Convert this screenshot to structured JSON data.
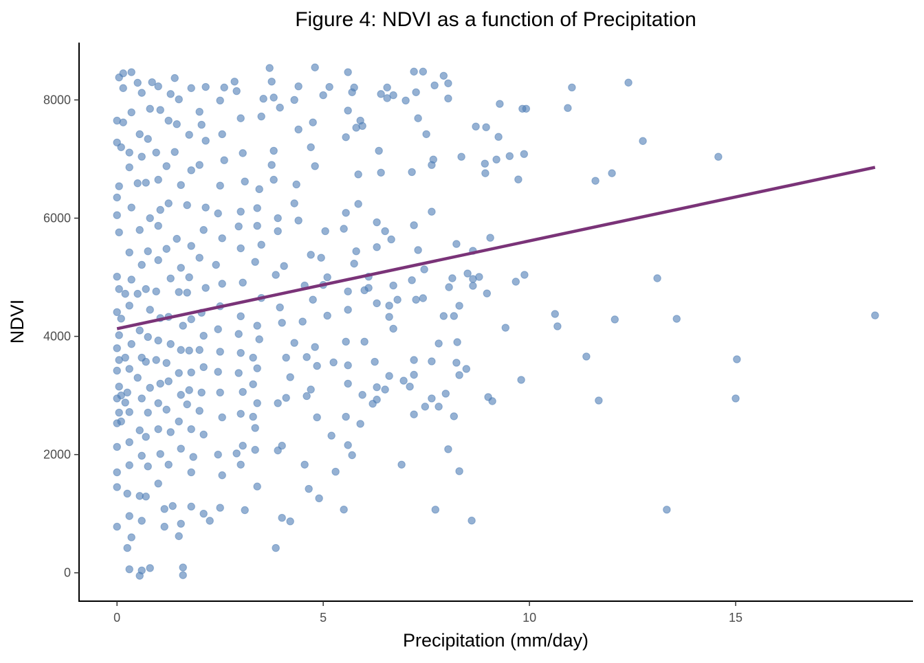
{
  "chart_data": {
    "type": "scatter",
    "title": "Figure 4: NDVI as a function of Precipitation",
    "xlabel": "Precipitation (mm/day)",
    "ylabel": "NDVI",
    "xlim": [
      -0.92,
      19.3
    ],
    "ylim": [
      -480,
      8970
    ],
    "xticks": [
      0,
      5,
      10,
      15
    ],
    "yticks": [
      0,
      2000,
      4000,
      6000,
      8000
    ],
    "grid": false,
    "legend": "none",
    "colors": {
      "points": "#4e7db5",
      "trend": "#7a3378",
      "axis": "#000000",
      "tick_label": "#4d4d4d"
    },
    "trend_line": {
      "x": [
        0,
        18.38
      ],
      "y": [
        4130,
        6860
      ]
    },
    "points": [
      [
        18.38,
        4355
      ],
      [
        15.03,
        3612
      ],
      [
        15.0,
        2950
      ],
      [
        14.58,
        7038
      ],
      [
        13.33,
        1068
      ],
      [
        13.57,
        4297
      ],
      [
        13.1,
        4983
      ],
      [
        12.75,
        7305
      ],
      [
        12.4,
        8293
      ],
      [
        12.07,
        4286
      ],
      [
        12.0,
        6760
      ],
      [
        11.6,
        6632
      ],
      [
        11.68,
        2915
      ],
      [
        11.38,
        3659
      ],
      [
        11.03,
        8211
      ],
      [
        10.93,
        7863
      ],
      [
        10.68,
        4170
      ],
      [
        10.62,
        4379
      ],
      [
        9.8,
        3264
      ],
      [
        9.88,
        5041
      ],
      [
        9.67,
        4925
      ],
      [
        9.87,
        7085
      ],
      [
        9.73,
        6655
      ],
      [
        9.92,
        7851
      ],
      [
        9.83,
        7851
      ],
      [
        9.52,
        7050
      ],
      [
        9.28,
        7933
      ],
      [
        9.25,
        7375
      ],
      [
        9.2,
        6992
      ],
      [
        9.42,
        4146
      ],
      [
        9.1,
        2904
      ],
      [
        9.0,
        2973
      ],
      [
        9.05,
        5668
      ],
      [
        8.97,
        4727
      ],
      [
        8.92,
        6922
      ],
      [
        8.93,
        6760
      ],
      [
        8.95,
        7538
      ],
      [
        8.7,
        7550
      ],
      [
        8.6,
        883
      ],
      [
        8.78,
        5006
      ],
      [
        8.63,
        4855
      ],
      [
        8.63,
        4971
      ],
      [
        8.5,
        5064
      ],
      [
        8.63,
        5447
      ],
      [
        8.47,
        3449
      ],
      [
        8.3,
        3345
      ],
      [
        8.3,
        1719
      ],
      [
        8.3,
        4518
      ],
      [
        8.25,
        3902
      ],
      [
        8.23,
        3554
      ],
      [
        8.23,
        5563
      ],
      [
        8.35,
        7038
      ],
      [
        8.17,
        2648
      ],
      [
        8.17,
        4344
      ],
      [
        7.92,
        4344
      ],
      [
        8.05,
        4832
      ],
      [
        8.13,
        4983
      ],
      [
        8.03,
        8025
      ],
      [
        7.92,
        8409
      ],
      [
        8.03,
        8281
      ],
      [
        8.03,
        2091
      ],
      [
        7.97,
        3031
      ],
      [
        7.8,
        3879
      ],
      [
        7.8,
        2811
      ],
      [
        7.63,
        2950
      ],
      [
        7.7,
        8246
      ],
      [
        7.72,
        1068
      ],
      [
        7.67,
        6992
      ],
      [
        7.63,
        6899
      ],
      [
        7.63,
        3577
      ],
      [
        7.63,
        6109
      ],
      [
        7.5,
        7421
      ],
      [
        7.42,
        8479
      ],
      [
        7.45,
        5133
      ],
      [
        7.42,
        4646
      ],
      [
        7.47,
        2811
      ],
      [
        7.2,
        8479
      ],
      [
        7.25,
        8130
      ],
      [
        7.3,
        7690
      ],
      [
        7.15,
        6780
      ],
      [
        7.2,
        5880
      ],
      [
        7.3,
        5460
      ],
      [
        7.15,
        4950
      ],
      [
        7.25,
        4620
      ],
      [
        7.2,
        3600
      ],
      [
        7.2,
        3350
      ],
      [
        7.1,
        3150
      ],
      [
        7.2,
        2680
      ],
      [
        6.9,
        1830
      ],
      [
        6.95,
        3250
      ],
      [
        7.0,
        7990
      ],
      [
        6.8,
        4620
      ],
      [
        6.7,
        4860
      ],
      [
        6.6,
        4520
      ],
      [
        6.6,
        3330
      ],
      [
        6.5,
        3100
      ],
      [
        6.6,
        4330
      ],
      [
        6.7,
        4130
      ],
      [
        6.65,
        5640
      ],
      [
        6.5,
        5780
      ],
      [
        6.55,
        8030
      ],
      [
        6.4,
        8100
      ],
      [
        6.55,
        8210
      ],
      [
        6.7,
        8080
      ],
      [
        6.4,
        6770
      ],
      [
        6.35,
        7140
      ],
      [
        6.3,
        5510
      ],
      [
        6.3,
        5930
      ],
      [
        6.25,
        3570
      ],
      [
        6.3,
        2930
      ],
      [
        6.2,
        2860
      ],
      [
        6.3,
        3140
      ],
      [
        6.3,
        4560
      ],
      [
        6.1,
        4820
      ],
      [
        6.1,
        5010
      ],
      [
        6.0,
        4780
      ],
      [
        6.0,
        3910
      ],
      [
        5.95,
        3010
      ],
      [
        5.9,
        2520
      ],
      [
        5.85,
        6240
      ],
      [
        5.85,
        6740
      ],
      [
        5.8,
        5440
      ],
      [
        5.75,
        5230
      ],
      [
        5.9,
        7650
      ],
      [
        5.95,
        7560
      ],
      [
        5.8,
        7530
      ],
      [
        5.7,
        8130
      ],
      [
        5.75,
        8210
      ],
      [
        5.6,
        8470
      ],
      [
        5.6,
        7820
      ],
      [
        5.55,
        7370
      ],
      [
        5.55,
        6090
      ],
      [
        5.5,
        5820
      ],
      [
        5.6,
        4760
      ],
      [
        5.6,
        4450
      ],
      [
        5.55,
        3910
      ],
      [
        5.6,
        3510
      ],
      [
        5.6,
        3200
      ],
      [
        5.55,
        2640
      ],
      [
        5.7,
        1990
      ],
      [
        5.6,
        2160
      ],
      [
        5.5,
        1070
      ],
      [
        5.3,
        1710
      ],
      [
        5.2,
        2320
      ],
      [
        5.25,
        3560
      ],
      [
        5.1,
        4350
      ],
      [
        5.0,
        4870
      ],
      [
        5.1,
        5000
      ],
      [
        4.95,
        5330
      ],
      [
        5.05,
        5780
      ],
      [
        5.0,
        8080
      ],
      [
        5.15,
        8220
      ],
      [
        4.8,
        8550
      ],
      [
        4.75,
        7620
      ],
      [
        4.7,
        7200
      ],
      [
        4.8,
        6880
      ],
      [
        4.7,
        5380
      ],
      [
        4.75,
        4620
      ],
      [
        4.8,
        3820
      ],
      [
        4.85,
        3500
      ],
      [
        4.7,
        3100
      ],
      [
        4.6,
        2990
      ],
      [
        4.85,
        2630
      ],
      [
        4.55,
        1830
      ],
      [
        4.65,
        1420
      ],
      [
        4.9,
        1260
      ],
      [
        4.6,
        3650
      ],
      [
        4.5,
        4250
      ],
      [
        4.55,
        4860
      ],
      [
        4.4,
        5960
      ],
      [
        4.3,
        6250
      ],
      [
        4.35,
        6570
      ],
      [
        4.4,
        7500
      ],
      [
        4.4,
        8230
      ],
      [
        4.3,
        8000
      ],
      [
        4.2,
        870
      ],
      [
        4.0,
        930
      ],
      [
        3.85,
        420
      ],
      [
        3.9,
        2070
      ],
      [
        4.0,
        2150
      ],
      [
        3.9,
        2870
      ],
      [
        4.1,
        2960
      ],
      [
        4.2,
        3310
      ],
      [
        4.1,
        3640
      ],
      [
        4.3,
        3890
      ],
      [
        4.0,
        4230
      ],
      [
        3.95,
        4490
      ],
      [
        3.85,
        5040
      ],
      [
        4.05,
        5190
      ],
      [
        3.9,
        5780
      ],
      [
        3.9,
        6000
      ],
      [
        3.8,
        6650
      ],
      [
        3.75,
        6900
      ],
      [
        3.8,
        7140
      ],
      [
        3.95,
        7870
      ],
      [
        3.8,
        8040
      ],
      [
        3.75,
        8310
      ],
      [
        3.7,
        8540
      ],
      [
        3.55,
        8020
      ],
      [
        3.5,
        7720
      ],
      [
        3.45,
        6490
      ],
      [
        3.4,
        6170
      ],
      [
        3.4,
        5870
      ],
      [
        3.5,
        5550
      ],
      [
        3.35,
        5260
      ],
      [
        3.5,
        4650
      ],
      [
        3.4,
        4180
      ],
      [
        3.45,
        3950
      ],
      [
        3.3,
        3640
      ],
      [
        3.4,
        3460
      ],
      [
        3.3,
        3190
      ],
      [
        3.4,
        2870
      ],
      [
        3.3,
        2640
      ],
      [
        3.35,
        2450
      ],
      [
        3.35,
        2080
      ],
      [
        3.4,
        1460
      ],
      [
        3.1,
        1060
      ],
      [
        3.0,
        1830
      ],
      [
        3.05,
        2150
      ],
      [
        2.9,
        2020
      ],
      [
        3.0,
        2690
      ],
      [
        3.05,
        3060
      ],
      [
        2.95,
        3380
      ],
      [
        3.0,
        3720
      ],
      [
        2.95,
        4040
      ],
      [
        3.0,
        4340
      ],
      [
        3.05,
        4910
      ],
      [
        3.0,
        5490
      ],
      [
        2.95,
        5860
      ],
      [
        3.0,
        6110
      ],
      [
        3.1,
        6620
      ],
      [
        3.05,
        7100
      ],
      [
        3.0,
        7690
      ],
      [
        2.9,
        8150
      ],
      [
        2.85,
        8310
      ],
      [
        2.6,
        8210
      ],
      [
        2.5,
        7990
      ],
      [
        2.55,
        7420
      ],
      [
        2.6,
        6980
      ],
      [
        2.5,
        6550
      ],
      [
        2.45,
        6080
      ],
      [
        2.55,
        5660
      ],
      [
        2.4,
        5210
      ],
      [
        2.55,
        4890
      ],
      [
        2.5,
        4510
      ],
      [
        2.45,
        4120
      ],
      [
        2.5,
        3740
      ],
      [
        2.45,
        3400
      ],
      [
        2.5,
        3050
      ],
      [
        2.55,
        2630
      ],
      [
        2.45,
        2000
      ],
      [
        2.55,
        1650
      ],
      [
        2.5,
        1100
      ],
      [
        2.25,
        880
      ],
      [
        2.1,
        1000
      ],
      [
        2.1,
        2340
      ],
      [
        2.0,
        2740
      ],
      [
        2.05,
        3050
      ],
      [
        2.1,
        3480
      ],
      [
        2.0,
        3770
      ],
      [
        2.1,
        4010
      ],
      [
        2.05,
        4400
      ],
      [
        2.15,
        4820
      ],
      [
        2.0,
        5330
      ],
      [
        2.1,
        5800
      ],
      [
        2.15,
        6180
      ],
      [
        2.0,
        6900
      ],
      [
        2.15,
        7310
      ],
      [
        2.05,
        7580
      ],
      [
        2.0,
        7800
      ],
      [
        2.15,
        8220
      ],
      [
        1.8,
        8200
      ],
      [
        1.75,
        7410
      ],
      [
        1.8,
        6810
      ],
      [
        1.7,
        6220
      ],
      [
        1.8,
        5530
      ],
      [
        1.75,
        5000
      ],
      [
        1.7,
        4740
      ],
      [
        1.8,
        4290
      ],
      [
        1.75,
        3760
      ],
      [
        1.8,
        3390
      ],
      [
        1.75,
        3090
      ],
      [
        1.7,
        2850
      ],
      [
        1.8,
        2430
      ],
      [
        1.85,
        1960
      ],
      [
        1.8,
        1700
      ],
      [
        1.8,
        1120
      ],
      [
        1.55,
        830
      ],
      [
        1.6,
        -40
      ],
      [
        1.6,
        90
      ],
      [
        1.5,
        620
      ],
      [
        1.55,
        2100
      ],
      [
        1.5,
        2560
      ],
      [
        1.55,
        3010
      ],
      [
        1.5,
        3380
      ],
      [
        1.55,
        3770
      ],
      [
        1.6,
        4180
      ],
      [
        1.5,
        4750
      ],
      [
        1.55,
        5160
      ],
      [
        1.45,
        5650
      ],
      [
        1.55,
        6560
      ],
      [
        1.4,
        7120
      ],
      [
        1.45,
        7590
      ],
      [
        1.5,
        8010
      ],
      [
        1.4,
        8370
      ],
      [
        1.3,
        8100
      ],
      [
        1.25,
        7650
      ],
      [
        1.2,
        6880
      ],
      [
        1.25,
        6250
      ],
      [
        1.2,
        5480
      ],
      [
        1.3,
        4980
      ],
      [
        1.25,
        4330
      ],
      [
        1.3,
        3870
      ],
      [
        1.2,
        3550
      ],
      [
        1.25,
        3240
      ],
      [
        1.2,
        2760
      ],
      [
        1.3,
        2380
      ],
      [
        1.25,
        1830
      ],
      [
        1.35,
        1130
      ],
      [
        1.15,
        780
      ],
      [
        1.15,
        1080
      ],
      [
        1.0,
        1510
      ],
      [
        1.05,
        2010
      ],
      [
        1.0,
        2430
      ],
      [
        1.0,
        2870
      ],
      [
        1.05,
        3200
      ],
      [
        0.95,
        3600
      ],
      [
        1.0,
        3930
      ],
      [
        1.05,
        4310
      ],
      [
        0.95,
        4760
      ],
      [
        1.0,
        5290
      ],
      [
        1.0,
        5870
      ],
      [
        1.05,
        6140
      ],
      [
        1.0,
        6650
      ],
      [
        0.95,
        7110
      ],
      [
        1.05,
        7830
      ],
      [
        1.0,
        8230
      ],
      [
        0.85,
        8300
      ],
      [
        0.8,
        7850
      ],
      [
        0.75,
        7340
      ],
      [
        0.7,
        6600
      ],
      [
        0.8,
        6000
      ],
      [
        0.75,
        5440
      ],
      [
        0.7,
        4800
      ],
      [
        0.8,
        4450
      ],
      [
        0.75,
        3990
      ],
      [
        0.7,
        3570
      ],
      [
        0.8,
        3130
      ],
      [
        0.75,
        2710
      ],
      [
        0.7,
        2300
      ],
      [
        0.75,
        1800
      ],
      [
        0.7,
        1290
      ],
      [
        0.8,
        80
      ],
      [
        0.6,
        40
      ],
      [
        0.55,
        -50
      ],
      [
        0.6,
        880
      ],
      [
        0.55,
        1300
      ],
      [
        0.6,
        1980
      ],
      [
        0.55,
        2410
      ],
      [
        0.6,
        2950
      ],
      [
        0.5,
        3300
      ],
      [
        0.6,
        3640
      ],
      [
        0.55,
        4100
      ],
      [
        0.5,
        4720
      ],
      [
        0.6,
        5210
      ],
      [
        0.55,
        5800
      ],
      [
        0.5,
        6590
      ],
      [
        0.6,
        7040
      ],
      [
        0.55,
        7420
      ],
      [
        0.6,
        8120
      ],
      [
        0.5,
        8290
      ],
      [
        0.35,
        8470
      ],
      [
        0.35,
        7790
      ],
      [
        0.3,
        7110
      ],
      [
        0.3,
        6860
      ],
      [
        0.35,
        6180
      ],
      [
        0.3,
        5420
      ],
      [
        0.35,
        4960
      ],
      [
        0.3,
        4520
      ],
      [
        0.35,
        3870
      ],
      [
        0.3,
        3450
      ],
      [
        0.25,
        3050
      ],
      [
        0.3,
        2720
      ],
      [
        0.3,
        2210
      ],
      [
        0.3,
        1820
      ],
      [
        0.25,
        1340
      ],
      [
        0.3,
        960
      ],
      [
        0.25,
        420
      ],
      [
        0.3,
        60
      ],
      [
        0.35,
        600
      ],
      [
        0.15,
        8450
      ],
      [
        0.15,
        8200
      ],
      [
        0.15,
        7620
      ],
      [
        0.1,
        7200
      ],
      [
        0.05,
        6540
      ],
      [
        0.0,
        6050
      ],
      [
        0.05,
        5760
      ],
      [
        0.0,
        5010
      ],
      [
        0.05,
        4800
      ],
      [
        0.0,
        4410
      ],
      [
        0.05,
        4020
      ],
      [
        0.0,
        3800
      ],
      [
        0.05,
        3600
      ],
      [
        0.0,
        3420
      ],
      [
        0.05,
        3150
      ],
      [
        0.0,
        2950
      ],
      [
        0.05,
        2710
      ],
      [
        0.0,
        2530
      ],
      [
        0.0,
        2130
      ],
      [
        0.0,
        1700
      ],
      [
        0.0,
        1450
      ],
      [
        0.0,
        780
      ],
      [
        0.05,
        8380
      ],
      [
        0.0,
        7650
      ],
      [
        0.0,
        7280
      ],
      [
        0.0,
        6350
      ],
      [
        0.1,
        4300
      ],
      [
        0.1,
        3000
      ],
      [
        0.1,
        2560
      ],
      [
        0.2,
        3640
      ],
      [
        0.2,
        2880
      ],
      [
        0.2,
        4720
      ]
    ]
  }
}
